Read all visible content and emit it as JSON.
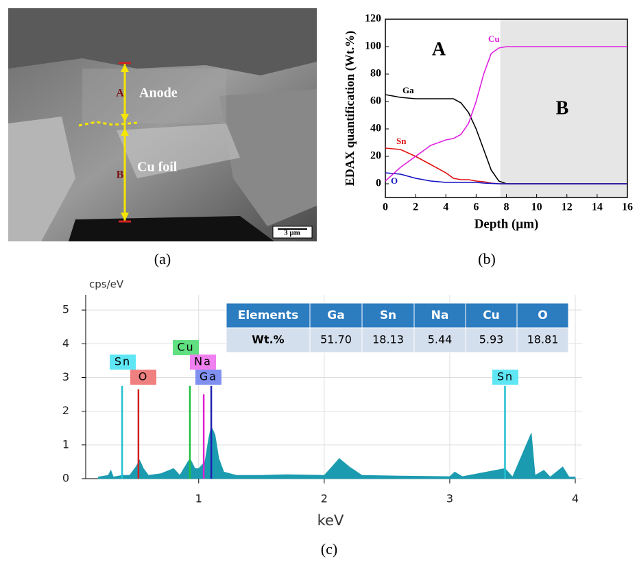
{
  "image_panel": {
    "labels": [
      "A",
      "Anode",
      "B",
      "Cu foil"
    ],
    "scale_bar": "3 µm"
  },
  "captions": [
    "(a)",
    "(b)",
    "(c)"
  ],
  "chart_data": [
    {
      "type": "line",
      "ylabel": "EDAX quantification (Wt.%)",
      "xlabel": "Depth (μm)",
      "annotations": [
        "A",
        "B"
      ],
      "shaded_region": [
        7.6,
        16
      ],
      "xlim": [
        0,
        16
      ],
      "ylim": [
        -10,
        120
      ],
      "xticks": [
        0,
        2,
        4,
        6,
        8,
        10,
        12,
        14,
        16
      ],
      "yticks": [
        0,
        20,
        40,
        60,
        80,
        100,
        120
      ],
      "x": [
        0,
        1,
        2,
        3,
        4,
        4.5,
        5,
        5.5,
        6,
        6.5,
        7,
        7.5,
        8,
        10,
        12,
        14,
        16
      ],
      "series": [
        {
          "name": "Ga",
          "color": "#000000",
          "values": [
            65,
            63,
            62,
            62,
            62,
            62,
            59,
            52,
            40,
            25,
            10,
            2,
            0,
            0,
            0,
            0,
            0
          ]
        },
        {
          "name": "Sn",
          "color": "#e01010",
          "values": [
            26,
            25,
            20,
            14,
            8,
            4,
            3,
            3,
            2,
            1.5,
            0.5,
            0,
            0,
            0,
            0,
            0,
            0
          ]
        },
        {
          "name": "O",
          "color": "#1010c0",
          "values": [
            8,
            7,
            4,
            2,
            1,
            1,
            1,
            1,
            1,
            0.5,
            0.3,
            0,
            0,
            0,
            0,
            0,
            0
          ]
        },
        {
          "name": "Cu",
          "color": "#e020e0",
          "values": [
            2,
            12,
            20,
            28,
            32,
            33,
            36,
            44,
            60,
            80,
            95,
            99,
            100,
            100,
            100,
            100,
            100
          ]
        }
      ]
    },
    {
      "type": "area",
      "ylabel": "cps/eV",
      "xlabel": "keV",
      "color": "#1b9bb0",
      "grid": true,
      "xlim": [
        0.1,
        4
      ],
      "ylim": [
        0,
        5.45
      ],
      "xticks": [
        1,
        2,
        3,
        4
      ],
      "yticks": [
        0,
        1,
        2,
        3,
        4,
        5
      ],
      "x": [
        0.2,
        0.28,
        0.3,
        0.32,
        0.39,
        0.45,
        0.5,
        0.53,
        0.56,
        0.6,
        0.7,
        0.8,
        0.85,
        0.93,
        0.97,
        1.0,
        1.05,
        1.08,
        1.1,
        1.13,
        1.16,
        1.2,
        1.3,
        1.5,
        1.7,
        2.0,
        2.05,
        2.12,
        2.2,
        2.3,
        2.6,
        3.0,
        3.04,
        3.1,
        3.44,
        3.5,
        3.65,
        3.68,
        3.75,
        3.8,
        3.9,
        3.95,
        4.0
      ],
      "values": [
        0.05,
        0.1,
        0.25,
        0.05,
        0.1,
        0.1,
        0.35,
        0.55,
        0.3,
        0.1,
        0.15,
        0.3,
        0.1,
        0.6,
        0.3,
        0.3,
        0.5,
        1.2,
        1.55,
        1.3,
        0.6,
        0.2,
        0.1,
        0.1,
        0.12,
        0.1,
        0.3,
        0.6,
        0.35,
        0.1,
        0.08,
        0.06,
        0.2,
        0.06,
        0.3,
        0.05,
        1.35,
        0.1,
        0.25,
        0.05,
        0.35,
        0.05,
        0.05
      ],
      "peaks": [
        {
          "name": "Sn",
          "x": 0.39,
          "height": 2.75,
          "color": "#22c0d0",
          "label_color": "#5fe6f5"
        },
        {
          "name": "O",
          "x": 0.52,
          "height": 2.65,
          "color": "#d02020",
          "label_color": "#f08080"
        },
        {
          "name": "Cu",
          "x": 0.93,
          "height": 2.75,
          "color": "#20c040",
          "label_color": "#60e080"
        },
        {
          "name": "Na",
          "x": 1.04,
          "height": 2.5,
          "color": "#e020d0",
          "label_color": "#f080f0"
        },
        {
          "name": "Ga",
          "x": 1.1,
          "height": 2.75,
          "color": "#2020b0",
          "label_color": "#8090f0"
        },
        {
          "name": "Sn",
          "x": 3.44,
          "height": 2.75,
          "color": "#22c0d0",
          "label_color": "#5fe6f5"
        }
      ]
    }
  ],
  "table": {
    "header": [
      "Elements",
      "Ga",
      "Sn",
      "Na",
      "Cu",
      "O"
    ],
    "rows": [
      [
        "Wt.%",
        "51.70",
        "18.13",
        "5.44",
        "5.93",
        "18.81"
      ]
    ]
  }
}
